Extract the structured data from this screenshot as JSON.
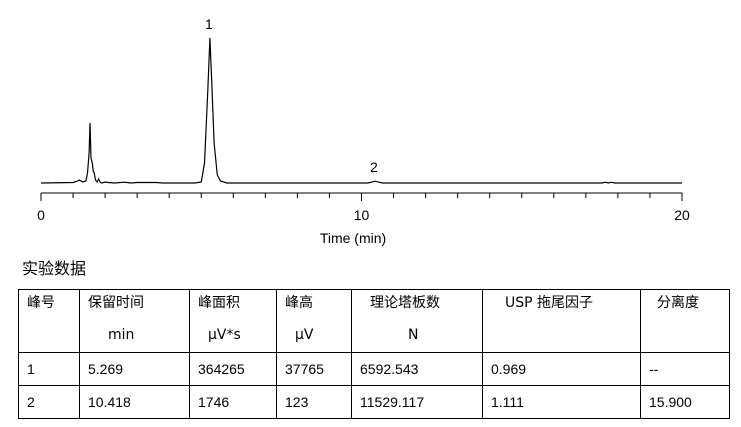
{
  "chart_data": {
    "type": "line",
    "xlabel": "Time (min)",
    "xlim": [
      0,
      20
    ],
    "ticks": [
      0,
      10,
      20
    ],
    "x_tick_labels": [
      "0",
      "10",
      "20"
    ],
    "peaks": [
      {
        "label": "1",
        "retention_time": 5.269
      },
      {
        "label": "2",
        "retention_time": 10.418
      }
    ],
    "trace": [
      [
        0,
        0
      ],
      [
        1.0,
        0.5
      ],
      [
        1.1,
        1.5
      ],
      [
        1.2,
        3
      ],
      [
        1.3,
        1
      ],
      [
        1.4,
        2
      ],
      [
        1.45,
        10
      ],
      [
        1.5,
        30
      ],
      [
        1.53,
        60
      ],
      [
        1.56,
        25
      ],
      [
        1.6,
        20
      ],
      [
        1.63,
        12
      ],
      [
        1.66,
        10
      ],
      [
        1.7,
        3
      ],
      [
        1.75,
        1
      ],
      [
        1.8,
        4
      ],
      [
        1.85,
        0.5
      ],
      [
        1.9,
        0
      ],
      [
        2.0,
        1
      ],
      [
        2.1,
        0.5
      ],
      [
        2.3,
        0
      ],
      [
        2.6,
        0.8
      ],
      [
        2.8,
        0
      ],
      [
        3.0,
        0.5
      ],
      [
        3.6,
        0.5
      ],
      [
        3.8,
        0
      ],
      [
        4.8,
        0
      ],
      [
        5.0,
        1
      ],
      [
        5.1,
        20
      ],
      [
        5.2,
        90
      ],
      [
        5.269,
        145
      ],
      [
        5.33,
        100
      ],
      [
        5.4,
        40
      ],
      [
        5.5,
        8
      ],
      [
        5.6,
        2
      ],
      [
        5.8,
        0
      ],
      [
        8.0,
        0
      ],
      [
        10.2,
        0
      ],
      [
        10.35,
        1.2
      ],
      [
        10.418,
        1.8
      ],
      [
        10.5,
        1.2
      ],
      [
        10.65,
        0
      ],
      [
        17.5,
        0
      ],
      [
        17.6,
        0.8
      ],
      [
        17.7,
        0
      ],
      [
        17.8,
        0.8
      ],
      [
        17.9,
        0
      ],
      [
        18.0,
        0
      ],
      [
        20.0,
        0
      ]
    ]
  },
  "section_title": "实验数据",
  "table": {
    "headers": [
      {
        "line1": "峰号",
        "line2": ""
      },
      {
        "line1": "保留时间",
        "line2": "min"
      },
      {
        "line1": "峰面积",
        "line2": "μV*s"
      },
      {
        "line1": "峰高",
        "line2": "μV"
      },
      {
        "line1": "理论塔板数",
        "line2": "N"
      },
      {
        "line1": "USP 拖尾因子",
        "line2": ""
      },
      {
        "line1": "分离度",
        "line2": ""
      }
    ],
    "rows": [
      [
        "1",
        "5.269",
        "364265",
        "37765",
        "6592.543",
        "0.969",
        "--"
      ],
      [
        "2",
        "10.418",
        "1746",
        "123",
        "11529.117",
        "1.111",
        "15.900"
      ]
    ]
  }
}
